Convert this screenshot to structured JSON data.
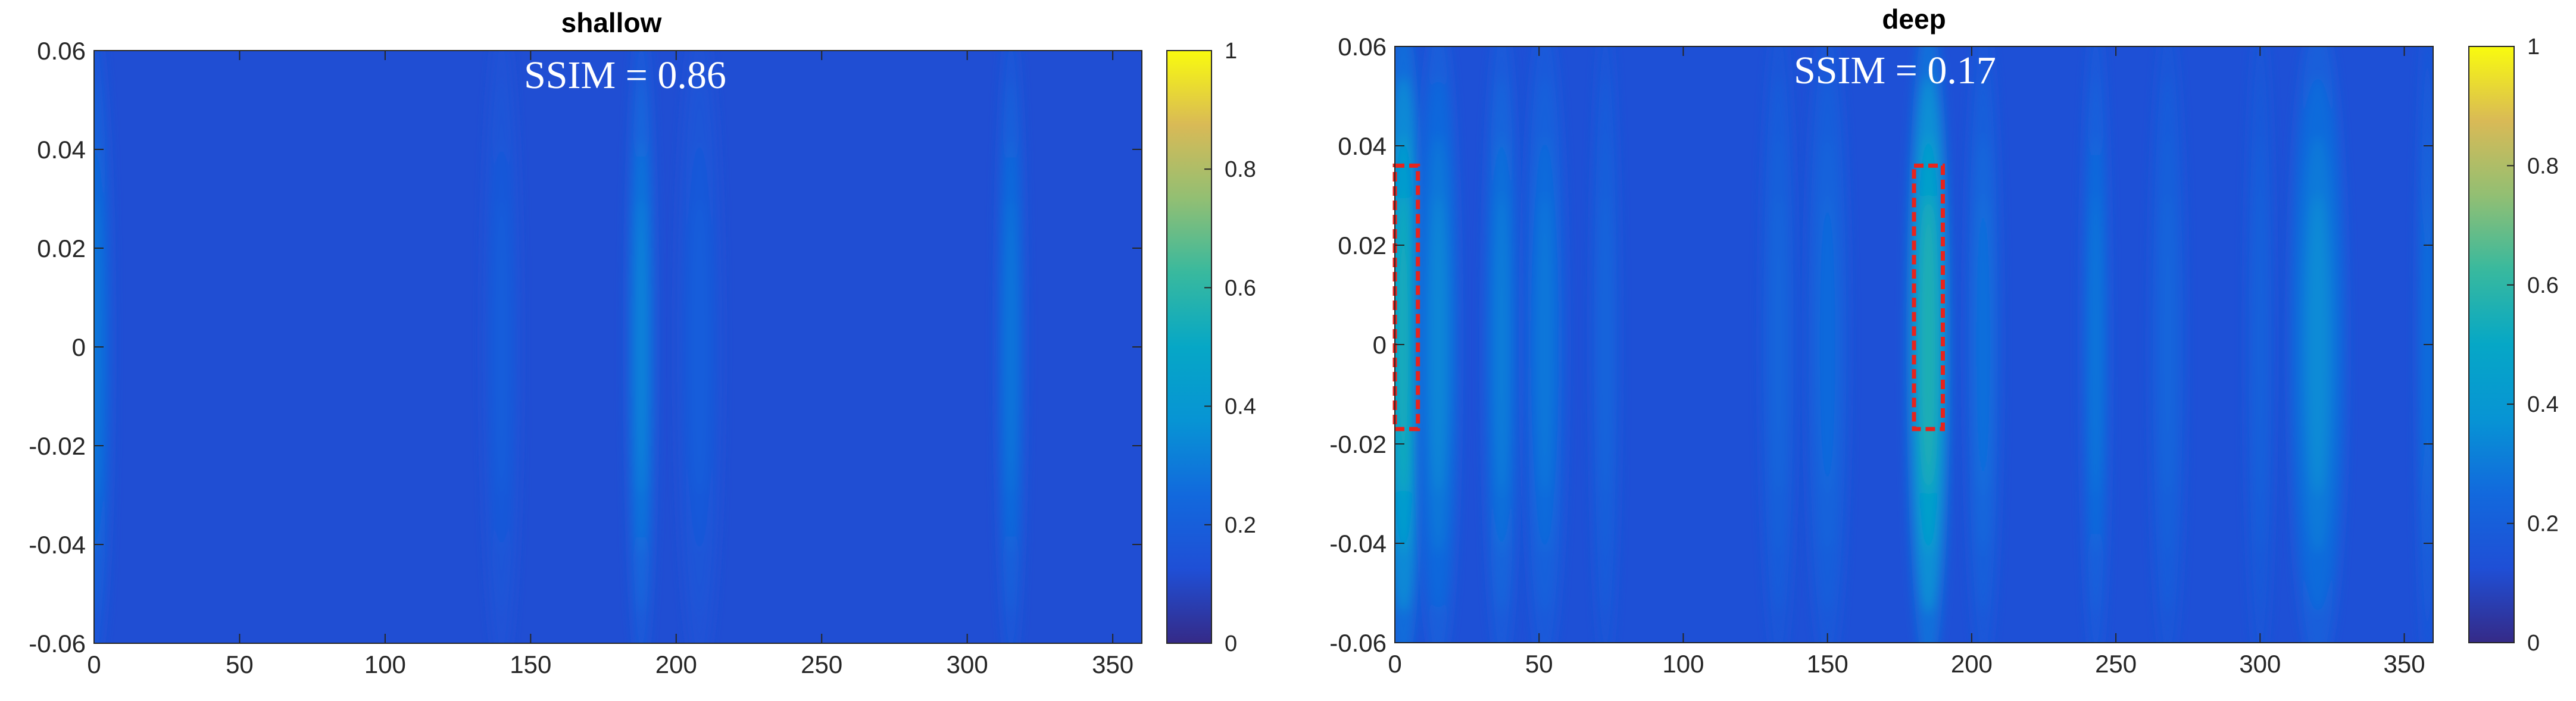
{
  "chart_data": [
    {
      "type": "heatmap",
      "title": "shallow",
      "annotation": "SSIM = 0.86",
      "xlim": [
        0,
        360
      ],
      "ylim": [
        -0.06,
        0.06
      ],
      "xticks": [
        0,
        50,
        100,
        150,
        200,
        250,
        300,
        350
      ],
      "yticks": [
        0.06,
        0.04,
        0.02,
        0,
        -0.02,
        -0.04,
        -0.06
      ],
      "ytick_labels": [
        "0.06",
        "0.04",
        "0.02",
        "0",
        "-0.02",
        "-0.04",
        "-0.06"
      ],
      "colorbar": {
        "min": 0,
        "max": 1,
        "ticks": [
          0,
          0.2,
          0.4,
          0.6,
          0.8,
          1
        ],
        "tick_labels": [
          "0",
          "0.2",
          "0.4",
          "0.6",
          "0.8",
          "1"
        ]
      },
      "colormap": "parula",
      "base_value": 0.12,
      "columns": [
        {
          "x": 0,
          "width": 5,
          "peak": 0.3
        },
        {
          "x": 140,
          "width": 5,
          "peak": 0.2
        },
        {
          "x": 188,
          "width": 4,
          "peak": 0.34
        },
        {
          "x": 208,
          "width": 6,
          "peak": 0.2
        },
        {
          "x": 315,
          "width": 4,
          "peak": 0.3
        }
      ],
      "highlight_boxes": []
    },
    {
      "type": "heatmap",
      "title": "deep",
      "annotation": "SSIM = 0.17",
      "xlim": [
        0,
        360
      ],
      "ylim": [
        -0.06,
        0.06
      ],
      "xticks": [
        0,
        50,
        100,
        150,
        200,
        250,
        300,
        350
      ],
      "yticks": [
        0.06,
        0.04,
        0.02,
        0,
        -0.02,
        -0.04,
        -0.06
      ],
      "ytick_labels": [
        "0.06",
        "0.04",
        "0.02",
        "0",
        "-0.02",
        "-0.04",
        "-0.06"
      ],
      "colorbar": {
        "min": 0,
        "max": 1,
        "ticks": [
          0,
          0.2,
          0.4,
          0.6,
          0.8,
          1
        ],
        "tick_labels": [
          "0",
          "0.2",
          "0.4",
          "0.6",
          "0.8",
          "1"
        ]
      },
      "colormap": "parula",
      "base_value": 0.13,
      "columns": [
        {
          "x": 3,
          "width": 6,
          "peak": 0.55
        },
        {
          "x": 15,
          "width": 6,
          "peak": 0.35
        },
        {
          "x": 37,
          "width": 5,
          "peak": 0.32
        },
        {
          "x": 52,
          "width": 6,
          "peak": 0.3
        },
        {
          "x": 73,
          "width": 4,
          "peak": 0.24
        },
        {
          "x": 133,
          "width": 5,
          "peak": 0.24
        },
        {
          "x": 150,
          "width": 6,
          "peak": 0.26
        },
        {
          "x": 185,
          "width": 6,
          "peak": 0.58
        },
        {
          "x": 204,
          "width": 5,
          "peak": 0.28
        },
        {
          "x": 243,
          "width": 4,
          "peak": 0.3
        },
        {
          "x": 268,
          "width": 5,
          "peak": 0.24
        },
        {
          "x": 300,
          "width": 4,
          "peak": 0.22
        },
        {
          "x": 320,
          "width": 8,
          "peak": 0.36
        },
        {
          "x": 358,
          "width": 3,
          "peak": 0.28
        }
      ],
      "highlight_boxes": [
        {
          "x0": 0,
          "x1": 8,
          "y0": -0.017,
          "y1": 0.036,
          "color": "#e8231c"
        },
        {
          "x0": 180,
          "x1": 190,
          "y0": -0.017,
          "y1": 0.036,
          "color": "#e8231c"
        }
      ]
    }
  ]
}
